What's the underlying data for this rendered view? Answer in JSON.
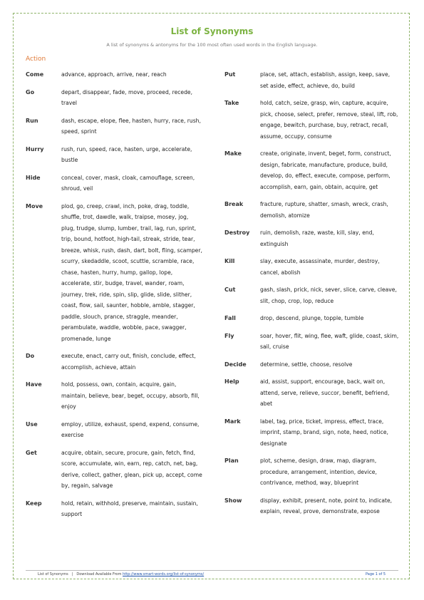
{
  "title": "List of Synonyms",
  "subtitle": "A list of synonyms & antonyms for the 100 most often used words in the English language.",
  "section": "Action",
  "left": [
    {
      "word": "Come",
      "synonyms": "advance, approach, arrive, near, reach"
    },
    {
      "word": "Go",
      "synonyms": "depart, disappear, fade, move, proceed, recede, travel"
    },
    {
      "word": "Run",
      "synonyms": "dash, escape, elope, flee, hasten, hurry, race, rush, speed, sprint"
    },
    {
      "word": "Hurry",
      "synonyms": "rush, run, speed, race, hasten, urge, accelerate, bustle"
    },
    {
      "word": "Hide",
      "synonyms": "conceal, cover, mask, cloak, camouflage, screen, shroud, veil"
    },
    {
      "word": "Move",
      "synonyms": "plod, go, creep, crawl, inch, poke, drag, toddle, shuffle, trot, dawdle, walk, traipse, mosey, jog, plug, trudge, slump, lumber, trail, lag, run, sprint, trip, bound, hotfoot, high-tail, streak, stride, tear, breeze, whisk, rush, dash, dart, bolt, fling, scamper, scurry, skedaddle, scoot, scuttle, scramble, race, chase, hasten, hurry, hump, gallop, lope, accelerate, stir, budge, travel, wander, roam, journey, trek, ride, spin, slip, glide, slide, slither, coast, flow, sail, saunter, hobble, amble, stagger, paddle, slouch, prance, straggle, meander, perambulate, waddle, wobble, pace, swagger, promenade, lunge"
    },
    {
      "word": "Do",
      "synonyms": "execute, enact, carry out, finish, conclude, effect, accomplish, achieve, attain"
    },
    {
      "word": "Have",
      "synonyms": "hold, possess, own, contain, acquire, gain, maintain, believe, bear, beget, occupy, absorb, fill, enjoy"
    },
    {
      "word": "Use",
      "synonyms": "employ, utilize, exhaust, spend, expend, consume, exercise"
    },
    {
      "word": "Get",
      "synonyms": "acquire, obtain, secure, procure, gain, fetch, find, score, accumulate, win, earn, rep, catch, net, bag, derive, collect, gather, glean, pick up, accept, come by, regain, salvage"
    },
    {
      "word": "Keep",
      "synonyms": "hold, retain, withhold, preserve, maintain, sustain, support"
    }
  ],
  "right": [
    {
      "word": "Put",
      "synonyms": "place, set, attach, establish, assign, keep, save, set aside, effect, achieve, do, build"
    },
    {
      "word": "Take",
      "synonyms": "hold, catch, seize, grasp, win, capture, acquire, pick, choose, select, prefer, remove, steal, lift, rob, engage, bewitch, purchase, buy, retract, recall, assume, occupy, consume"
    },
    {
      "word": "Make",
      "synonyms": "create, originate, invent, beget, form, construct, design, fabricate, manufacture, produce, build, develop, do, effect, execute, compose, perform, accomplish, earn, gain, obtain, acquire, get"
    },
    {
      "word": "Break",
      "synonyms": "fracture, rupture, shatter, smash, wreck, crash, demolish, atomize"
    },
    {
      "word": "Destroy",
      "synonyms": "ruin, demolish, raze, waste, kill, slay, end, extinguish"
    },
    {
      "word": "Kill",
      "synonyms": "slay, execute, assassinate, murder, destroy, cancel, abolish"
    },
    {
      "word": "Cut",
      "synonyms": "gash, slash, prick, nick, sever, slice, carve, cleave, slit, chop, crop, lop, reduce"
    },
    {
      "word": "Fall",
      "synonyms": "drop, descend, plunge, topple, tumble"
    },
    {
      "word": "Fly",
      "synonyms": "soar, hover, flit, wing, flee, waft, glide, coast, skim, sail, cruise"
    },
    {
      "word": "Decide",
      "synonyms": "determine, settle, choose, resolve"
    },
    {
      "word": "Help",
      "synonyms": "aid, assist, support, encourage, back, wait on, attend, serve, relieve, succor, benefit, befriend, abet"
    },
    {
      "word": "Mark",
      "synonyms": "label, tag, price, ticket, impress, effect, trace, imprint, stamp, brand, sign, note, heed, notice, designate"
    },
    {
      "word": "Plan",
      "synonyms": "plot, scheme, design, draw, map, diagram, procedure, arrangement, intention, device, contrivance, method, way, blueprint"
    },
    {
      "word": "Show",
      "synonyms": "display, exhibit, present, note, point to, indicate, explain, reveal, prove, demonstrate, expose"
    }
  ],
  "footer": {
    "doc_name": "List of Synonyms",
    "separator": "|",
    "download_text": "Download Available From",
    "link": "http://www.smart-words.org/list-of-synonyms/",
    "page": "Page 1 of 5"
  }
}
